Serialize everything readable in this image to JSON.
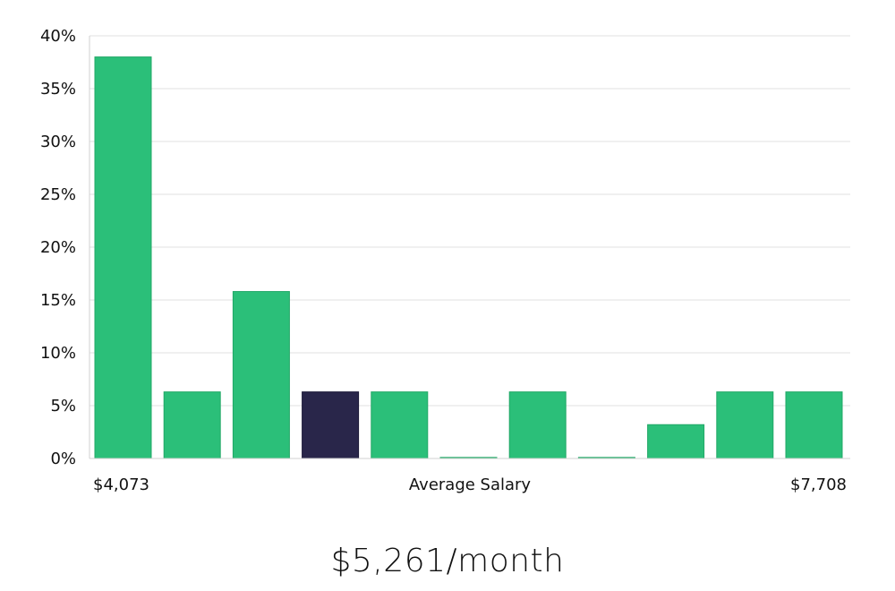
{
  "headline": {
    "salary_text": "$5,261/month"
  },
  "chart_data": {
    "type": "bar",
    "title": "",
    "xlabel": "Average Salary",
    "ylabel": "",
    "x_range_labels": {
      "min": "$4,073",
      "max": "$7,708"
    },
    "ylim": [
      0,
      40
    ],
    "yticks": [
      0,
      5,
      10,
      15,
      20,
      25,
      30,
      35,
      40
    ],
    "ytick_labels": [
      "0%",
      "5%",
      "10%",
      "15%",
      "20%",
      "25%",
      "30%",
      "35%",
      "40%"
    ],
    "grid": true,
    "values": [
      38,
      6.3,
      15.8,
      6.3,
      6.3,
      0.1,
      6.3,
      0.1,
      3.2,
      6.3,
      6.3
    ],
    "highlight_index": 3,
    "colors": {
      "bar": "#2bbf79",
      "bar_border": "#22a867",
      "highlight": "#29264a",
      "highlight_border": "#1a1836"
    }
  }
}
